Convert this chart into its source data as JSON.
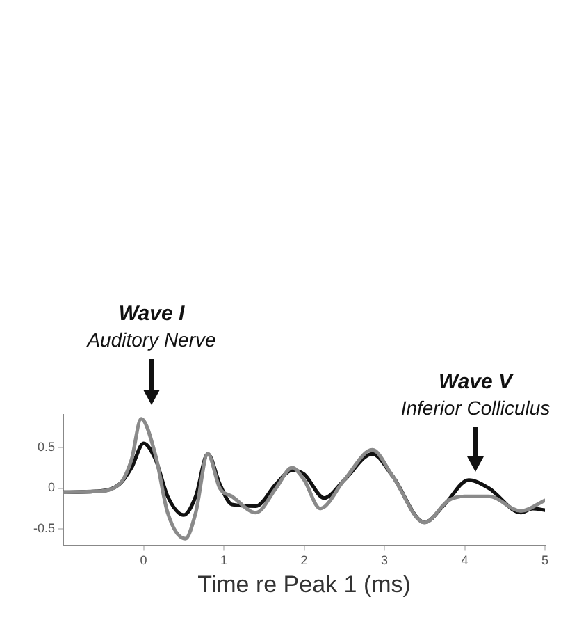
{
  "chart_data": {
    "type": "line",
    "xlabel": "Time re Peak 1 (ms)",
    "xlim": [
      -1,
      5
    ],
    "xticks": [
      0,
      1,
      2,
      3,
      4,
      5
    ],
    "ylim": [
      -0.7,
      0.9
    ],
    "yticks": [
      -0.5,
      0,
      0.5
    ],
    "grid": false,
    "legend": false,
    "marker": "none",
    "line_style": "solid",
    "series": [
      {
        "color": "#8a8a8a",
        "x": [
          -1,
          -0.6,
          -0.3,
          -0.15,
          -0.03,
          0.15,
          0.3,
          0.52,
          0.65,
          0.8,
          0.95,
          1.1,
          1.4,
          1.65,
          1.85,
          2,
          2.2,
          2.5,
          2.85,
          3.1,
          3.5,
          3.8,
          4,
          4.3,
          4.7,
          5
        ],
        "values": [
          -0.05,
          -0.04,
          0.05,
          0.35,
          0.85,
          0.4,
          -0.3,
          -0.62,
          -0.3,
          0.42,
          0,
          -0.1,
          -0.3,
          0,
          0.25,
          0.1,
          -0.25,
          0.1,
          0.47,
          0.15,
          -0.42,
          -0.15,
          -0.1,
          -0.1,
          -0.28,
          -0.15
        ]
      },
      {
        "color": "#111111",
        "x": [
          -1,
          -0.6,
          -0.3,
          -0.15,
          0,
          0.15,
          0.3,
          0.5,
          0.65,
          0.8,
          0.95,
          1.1,
          1.4,
          1.65,
          1.85,
          2,
          2.25,
          2.5,
          2.85,
          3.1,
          3.5,
          3.75,
          4.05,
          4.3,
          4.7,
          4.85,
          5
        ],
        "values": [
          -0.05,
          -0.04,
          0.05,
          0.25,
          0.55,
          0.35,
          -0.1,
          -0.33,
          -0.1,
          0.42,
          0.05,
          -0.2,
          -0.22,
          0.05,
          0.22,
          0.17,
          -0.12,
          0.1,
          0.42,
          0.15,
          -0.42,
          -0.2,
          0.1,
          0,
          -0.3,
          -0.25,
          -0.27
        ]
      }
    ],
    "annotations": [
      "Wave I",
      "Auditory Nerve",
      "Wave V",
      "Inferior Colliculus"
    ]
  }
}
